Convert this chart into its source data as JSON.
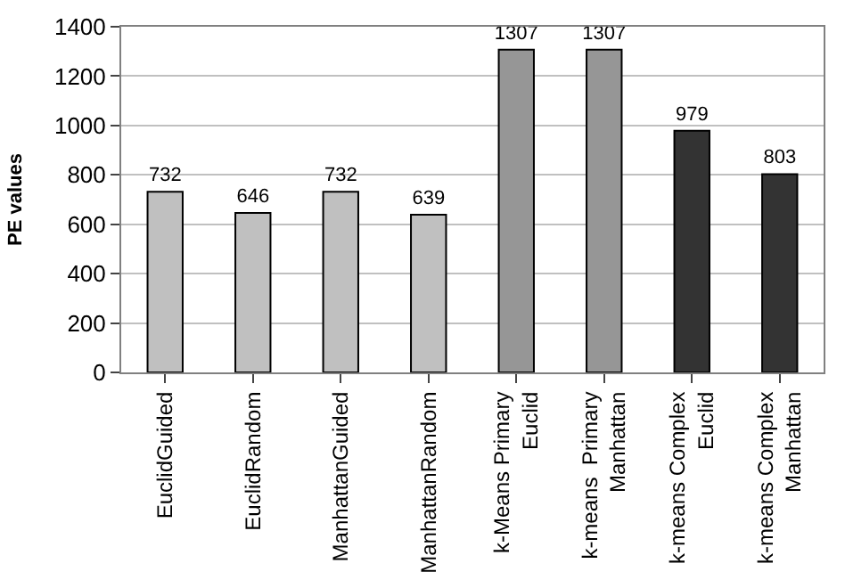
{
  "chart_data": {
    "type": "bar",
    "ylabel": "PE values",
    "categories": [
      "EuclidGuided",
      "EuclidRandom",
      "ManhattanGuided",
      "ManhattanRandom",
      "k-Means Primary\nEuclid",
      "k-means  Primary\nManhattan",
      "k-means Complex\nEuclid",
      "k-means Complex\nManhattan"
    ],
    "values": [
      732,
      646,
      732,
      639,
      1307,
      1307,
      979,
      803
    ],
    "colors": [
      "#c0c0c0",
      "#c0c0c0",
      "#c0c0c0",
      "#c0c0c0",
      "#969696",
      "#969696",
      "#333333",
      "#333333"
    ],
    "ylim": [
      0,
      1400
    ],
    "yticks": [
      0,
      200,
      400,
      600,
      800,
      1000,
      1200,
      1400
    ],
    "grid": "y",
    "data_labels": true
  }
}
